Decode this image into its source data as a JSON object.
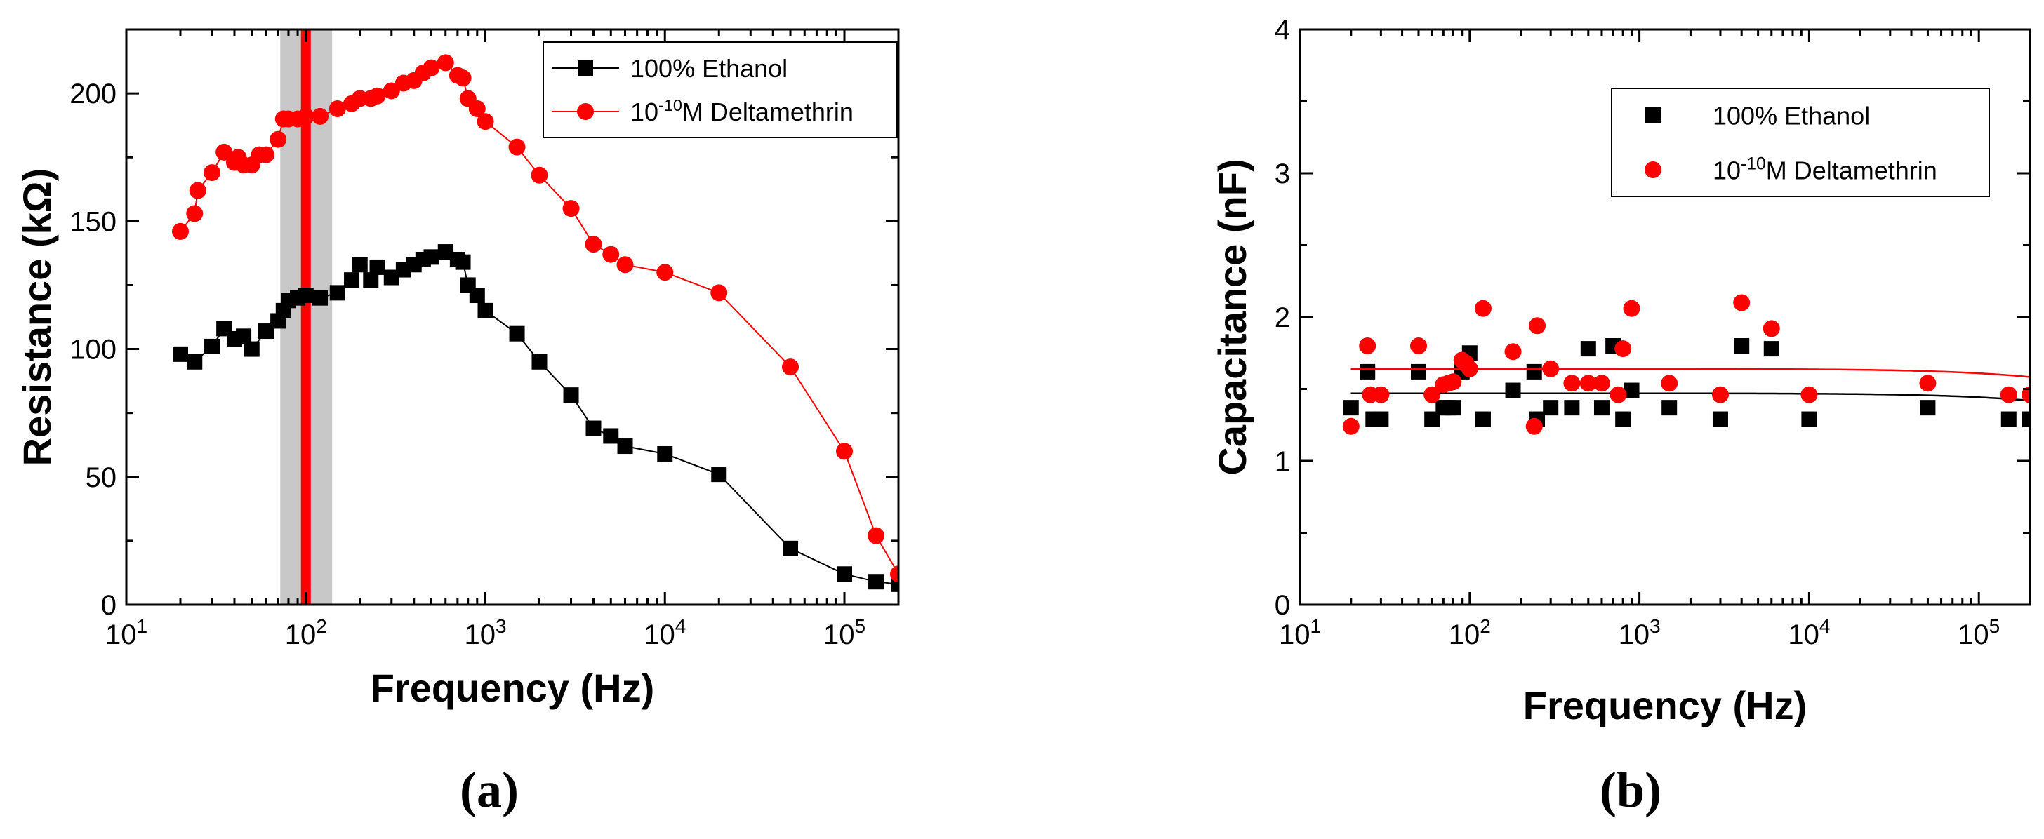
{
  "chart_data": [
    {
      "type": "line",
      "panel_label": "(a)",
      "xlabel": "Frequency (Hz)",
      "ylabel": "Resistance (kΩ)",
      "xscale": "log",
      "xlim": [
        10,
        200000
      ],
      "ylim": [
        0,
        225
      ],
      "x_ticks": [
        10,
        100,
        1000,
        10000,
        100000
      ],
      "x_tick_labels": [
        {
          "base": "10",
          "exp": "1"
        },
        {
          "base": "10",
          "exp": "2"
        },
        {
          "base": "10",
          "exp": "3"
        },
        {
          "base": "10",
          "exp": "4"
        },
        {
          "base": "10",
          "exp": "5"
        }
      ],
      "y_ticks": [
        0,
        50,
        100,
        150,
        200
      ],
      "y_tick_labels": [
        "0",
        "50",
        "100",
        "150",
        "200"
      ],
      "legend_position": "top-right",
      "highlight_band": {
        "x_from": 72,
        "x_to": 140,
        "color": "#c8c8c8"
      },
      "highlight_line": {
        "x": 100,
        "color": "#ff0000"
      },
      "series": [
        {
          "name": "100% Ethanol",
          "legend": {
            "main": "100% Ethanol"
          },
          "marker": "square",
          "color": "#000000",
          "x": [
            20,
            24,
            30,
            35,
            40,
            45,
            50,
            60,
            70,
            75,
            80,
            90,
            100,
            120,
            150,
            180,
            200,
            230,
            250,
            300,
            350,
            400,
            450,
            500,
            600,
            700,
            750,
            800,
            900,
            1000,
            1500,
            2000,
            3000,
            4000,
            5000,
            6000,
            10000,
            20000,
            50000,
            100000,
            150000,
            200000
          ],
          "y": [
            98,
            95,
            101,
            108,
            104,
            105,
            100,
            107,
            111,
            115,
            119,
            120,
            121,
            120,
            122,
            127,
            133,
            127,
            132,
            128,
            131,
            133,
            135,
            136,
            138,
            135,
            134,
            125,
            121,
            115,
            106,
            95,
            82,
            69,
            66,
            62,
            59,
            51,
            22,
            12,
            9,
            8
          ]
        },
        {
          "name": "10-10M Deltamethrin",
          "legend": {
            "pre": "10",
            "sup": "-10",
            "post": "M Deltamethrin"
          },
          "marker": "circle",
          "color": "#ff0000",
          "x": [
            20,
            24,
            25,
            30,
            35,
            40,
            42,
            45,
            50,
            55,
            60,
            70,
            75,
            80,
            90,
            100,
            120,
            150,
            180,
            200,
            230,
            250,
            300,
            350,
            400,
            450,
            500,
            600,
            700,
            750,
            800,
            900,
            1000,
            1500,
            2000,
            3000,
            4000,
            5000,
            6000,
            10000,
            20000,
            50000,
            100000,
            150000,
            200000
          ],
          "y": [
            146,
            153,
            162,
            169,
            177,
            173,
            175,
            172,
            172,
            176,
            176,
            182,
            190,
            190,
            190,
            191,
            191,
            194,
            196,
            198,
            198,
            199,
            201,
            204,
            205,
            208,
            210,
            212,
            207,
            206,
            198,
            194,
            189,
            179,
            168,
            155,
            141,
            137,
            133,
            130,
            122,
            93,
            60,
            27,
            12
          ]
        }
      ]
    },
    {
      "type": "scatter",
      "panel_label": "(b)",
      "xlabel": "Frequency (Hz)",
      "ylabel": "Capacitance (nF)",
      "xscale": "log",
      "xlim": [
        10,
        200000
      ],
      "ylim": [
        0,
        4
      ],
      "x_ticks": [
        10,
        100,
        1000,
        10000,
        100000
      ],
      "x_tick_labels": [
        {
          "base": "10",
          "exp": "1"
        },
        {
          "base": "10",
          "exp": "2"
        },
        {
          "base": "10",
          "exp": "3"
        },
        {
          "base": "10",
          "exp": "4"
        },
        {
          "base": "10",
          "exp": "5"
        }
      ],
      "y_ticks": [
        0,
        1,
        2,
        3,
        4
      ],
      "y_tick_labels": [
        "0",
        "1",
        "2",
        "3",
        "4"
      ],
      "legend_position": "top-right",
      "series": [
        {
          "name": "100% Ethanol",
          "legend": {
            "main": "100% Ethanol"
          },
          "marker": "square",
          "color": "#000000",
          "fit": {
            "a": 1.47,
            "b": 0.18,
            "k": 1.67e-06
          },
          "x": [
            20,
            25,
            27,
            30,
            50,
            60,
            70,
            75,
            80,
            90,
            100,
            120,
            180,
            240,
            250,
            300,
            400,
            500,
            600,
            700,
            800,
            900,
            1500,
            3000,
            4000,
            6000,
            10000,
            50000,
            150000,
            200000
          ],
          "y": [
            1.37,
            1.62,
            1.29,
            1.29,
            1.62,
            1.29,
            1.37,
            1.37,
            1.37,
            1.62,
            1.75,
            1.29,
            1.49,
            1.62,
            1.29,
            1.37,
            1.37,
            1.78,
            1.37,
            1.8,
            1.29,
            1.49,
            1.37,
            1.29,
            1.8,
            1.78,
            1.29,
            1.37,
            1.29,
            1.29
          ]
        },
        {
          "name": "10-10M Deltamethrin",
          "legend": {
            "pre": "10",
            "sup": "-10",
            "post": "M Deltamethrin"
          },
          "marker": "circle",
          "color": "#ff0000",
          "fit": {
            "a": 1.64,
            "b": 0.2,
            "k": 1.67e-06
          },
          "x": [
            20,
            25,
            26,
            30,
            50,
            60,
            70,
            75,
            80,
            90,
            95,
            100,
            120,
            180,
            240,
            250,
            300,
            400,
            500,
            600,
            750,
            800,
            900,
            1500,
            3000,
            4000,
            6000,
            10000,
            50000,
            150000,
            200000
          ],
          "y": [
            1.24,
            1.8,
            1.46,
            1.46,
            1.8,
            1.46,
            1.53,
            1.54,
            1.55,
            1.7,
            1.68,
            1.64,
            2.06,
            1.76,
            1.24,
            1.94,
            1.64,
            1.54,
            1.54,
            1.54,
            1.46,
            1.78,
            2.06,
            1.54,
            1.46,
            2.1,
            1.92,
            1.46,
            1.54,
            1.46,
            1.46
          ]
        }
      ]
    }
  ]
}
